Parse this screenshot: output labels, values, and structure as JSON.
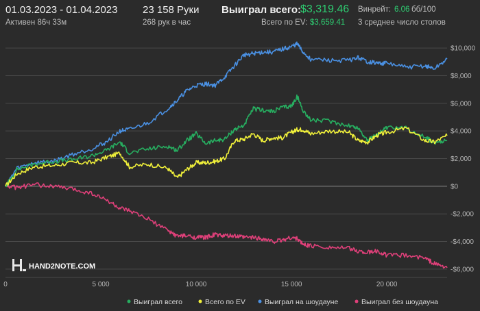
{
  "header": {
    "date_range": "01.03.2023 - 01.04.2023",
    "active_time": "Активен 86ч 33м",
    "hands": "23 158 Руки",
    "hands_per_hour": "268 рук в час",
    "won_label": "Выиграл всего:",
    "won_value": "$3,319.46",
    "ev_label": "Всего по EV:",
    "ev_value": "$3,659.41",
    "winrate_label": "Винрейт:",
    "winrate_value": "6.06",
    "winrate_unit": "бб/100",
    "tables": "3 среднее число столов"
  },
  "logo": {
    "text": "HAND2NOTE.COM"
  },
  "colors": {
    "background": "#2b2b2b",
    "grid": "#4a4a4a",
    "zero_line": "#8a8a8a",
    "won": "#27ae60",
    "ev": "#f1f13a",
    "showdown": "#4a90e2",
    "non_showdown": "#e0407a"
  },
  "chart_data": {
    "type": "line",
    "x_ticks": [
      0,
      5000,
      10000,
      15000,
      20000
    ],
    "x_tick_labels": [
      "0",
      "5 000",
      "10 000",
      "15 000",
      "20 000"
    ],
    "xlim": [
      0,
      23158
    ],
    "y_ticks": [
      -6000,
      -4000,
      -2000,
      0,
      2000,
      4000,
      6000,
      8000,
      10000
    ],
    "y_tick_labels": [
      "-$6,000",
      "-$4,000",
      "-$2,000",
      "$0",
      "$2,000",
      "$4,000",
      "$6,000",
      "$8,000",
      "$10,000"
    ],
    "ylim": [
      -6600,
      10600
    ],
    "grid": true,
    "legend_position": "bottom-right",
    "series": [
      {
        "name": "Выиграл всего",
        "key": "won",
        "points": [
          [
            0,
            0
          ],
          [
            600,
            1200
          ],
          [
            1500,
            1600
          ],
          [
            2500,
            1800
          ],
          [
            3500,
            1900
          ],
          [
            4500,
            2200
          ],
          [
            5300,
            2600
          ],
          [
            6000,
            3200
          ],
          [
            6500,
            2400
          ],
          [
            7500,
            2700
          ],
          [
            8500,
            2900
          ],
          [
            9000,
            2600
          ],
          [
            9500,
            3300
          ],
          [
            10000,
            3800
          ],
          [
            10500,
            3100
          ],
          [
            11000,
            3300
          ],
          [
            11500,
            3400
          ],
          [
            12000,
            4100
          ],
          [
            12500,
            4400
          ],
          [
            13000,
            5600
          ],
          [
            13500,
            5500
          ],
          [
            14000,
            5400
          ],
          [
            14500,
            5700
          ],
          [
            15000,
            5800
          ],
          [
            15300,
            6500
          ],
          [
            15600,
            5500
          ],
          [
            16000,
            4800
          ],
          [
            17000,
            4700
          ],
          [
            18000,
            4400
          ],
          [
            18500,
            4200
          ],
          [
            19000,
            3300
          ],
          [
            19500,
            3800
          ],
          [
            20000,
            4200
          ],
          [
            21000,
            4200
          ],
          [
            22000,
            3600
          ],
          [
            22500,
            3100
          ],
          [
            23158,
            3319
          ]
        ]
      },
      {
        "name": "Всего по EV",
        "key": "ev",
        "points": [
          [
            0,
            0
          ],
          [
            600,
            900
          ],
          [
            1500,
            1400
          ],
          [
            2500,
            1500
          ],
          [
            3500,
            1700
          ],
          [
            4500,
            1700
          ],
          [
            5300,
            2100
          ],
          [
            6000,
            2400
          ],
          [
            6500,
            1400
          ],
          [
            7500,
            1600
          ],
          [
            8500,
            1300
          ],
          [
            9000,
            600
          ],
          [
            9500,
            1200
          ],
          [
            10000,
            1700
          ],
          [
            10500,
            1700
          ],
          [
            11000,
            1800
          ],
          [
            11500,
            2000
          ],
          [
            12000,
            3300
          ],
          [
            12500,
            3400
          ],
          [
            13000,
            3800
          ],
          [
            13500,
            3300
          ],
          [
            14000,
            3500
          ],
          [
            14500,
            3500
          ],
          [
            15000,
            3900
          ],
          [
            15300,
            4100
          ],
          [
            15600,
            4100
          ],
          [
            16000,
            3800
          ],
          [
            17000,
            4000
          ],
          [
            18000,
            3900
          ],
          [
            18500,
            3300
          ],
          [
            19000,
            3200
          ],
          [
            19500,
            3700
          ],
          [
            20000,
            3900
          ],
          [
            21000,
            4200
          ],
          [
            22000,
            3300
          ],
          [
            22500,
            3200
          ],
          [
            23158,
            3659
          ]
        ]
      },
      {
        "name": "Выиграл на шоудауне",
        "key": "showdown",
        "points": [
          [
            0,
            0
          ],
          [
            600,
            1300
          ],
          [
            1500,
            1700
          ],
          [
            2500,
            1800
          ],
          [
            3500,
            2300
          ],
          [
            4500,
            2700
          ],
          [
            5300,
            3200
          ],
          [
            6000,
            4000
          ],
          [
            6500,
            4100
          ],
          [
            7500,
            4600
          ],
          [
            8500,
            5600
          ],
          [
            9000,
            6200
          ],
          [
            9500,
            6900
          ],
          [
            10000,
            7300
          ],
          [
            10500,
            7400
          ],
          [
            11000,
            7300
          ],
          [
            11500,
            7900
          ],
          [
            12000,
            8700
          ],
          [
            12500,
            9500
          ],
          [
            13000,
            9600
          ],
          [
            13500,
            9700
          ],
          [
            14000,
            9700
          ],
          [
            14500,
            9900
          ],
          [
            15000,
            10100
          ],
          [
            15300,
            10300
          ],
          [
            15600,
            9700
          ],
          [
            16000,
            9200
          ],
          [
            17000,
            9100
          ],
          [
            18000,
            9100
          ],
          [
            18500,
            9300
          ],
          [
            19000,
            9000
          ],
          [
            19500,
            8900
          ],
          [
            20000,
            8900
          ],
          [
            21000,
            8600
          ],
          [
            22000,
            8700
          ],
          [
            22500,
            8500
          ],
          [
            23158,
            9200
          ]
        ]
      },
      {
        "name": "Выиграл без шоудауна",
        "key": "non_showdown",
        "points": [
          [
            0,
            0
          ],
          [
            600,
            -100
          ],
          [
            1500,
            100
          ],
          [
            2500,
            0
          ],
          [
            3500,
            -200
          ],
          [
            4500,
            -500
          ],
          [
            5300,
            -1000
          ],
          [
            6000,
            -1600
          ],
          [
            6500,
            -1800
          ],
          [
            7500,
            -2400
          ],
          [
            8500,
            -3200
          ],
          [
            9000,
            -3600
          ],
          [
            9500,
            -3600
          ],
          [
            10000,
            -3700
          ],
          [
            10500,
            -3700
          ],
          [
            11000,
            -3500
          ],
          [
            11500,
            -3600
          ],
          [
            12000,
            -3600
          ],
          [
            12500,
            -3700
          ],
          [
            13000,
            -3700
          ],
          [
            13500,
            -3800
          ],
          [
            14000,
            -4000
          ],
          [
            14500,
            -3900
          ],
          [
            15000,
            -3700
          ],
          [
            15300,
            -3800
          ],
          [
            15600,
            -4200
          ],
          [
            16000,
            -4300
          ],
          [
            17000,
            -4400
          ],
          [
            18000,
            -4500
          ],
          [
            18500,
            -4700
          ],
          [
            19000,
            -4800
          ],
          [
            19500,
            -4700
          ],
          [
            20000,
            -5000
          ],
          [
            21000,
            -5000
          ],
          [
            22000,
            -5200
          ],
          [
            22500,
            -5600
          ],
          [
            23158,
            -5900
          ]
        ]
      }
    ]
  }
}
